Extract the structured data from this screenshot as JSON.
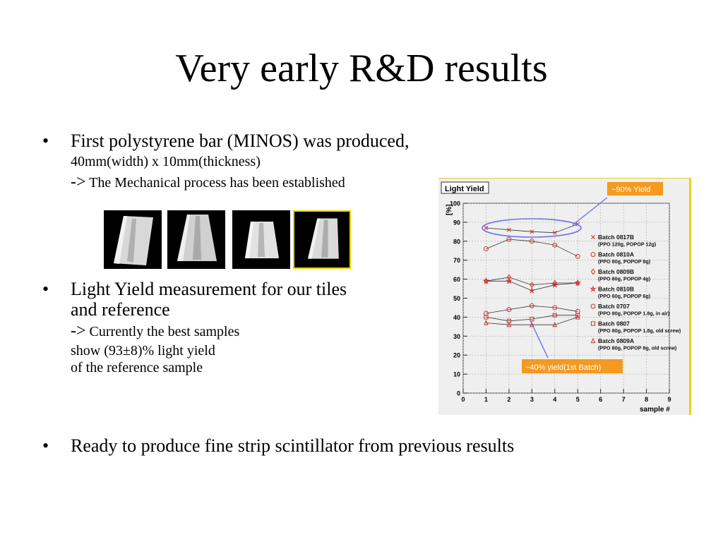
{
  "slide": {
    "title": "Very early R&D results",
    "bullets": [
      {
        "marker": "•",
        "main": "First polystyrene bar (MINOS) was produced,",
        "sub1": "40mm(width) x 10mm(thickness)",
        "arrow": "->",
        "sub2": "The Mechanical process has been established"
      },
      {
        "marker": "•",
        "main1": "Light Yield measurement for our tiles",
        "main2": "and reference",
        "arrow": "->",
        "sub1": "Currently the best samples",
        "sub2": "show (93±8)% light yield",
        "sub3": "of the reference sample"
      },
      {
        "marker": "•",
        "main": "Ready to produce fine strip scintillator from previous results"
      }
    ]
  },
  "chart_data": {
    "type": "scatter",
    "title": "Light Yield",
    "ylabel": "[%]",
    "xlabel": "sample #",
    "xlim": [
      0,
      9
    ],
    "ylim": [
      0,
      100
    ],
    "x_ticks": [
      "0",
      "1",
      "2",
      "3",
      "4",
      "5",
      "6",
      "7",
      "8",
      "9"
    ],
    "y_ticks": [
      "0",
      "10",
      "20",
      "30",
      "40",
      "50",
      "60",
      "70",
      "80",
      "90",
      "100"
    ],
    "marker_color": "#d0302a",
    "line_color": "#333333",
    "annotation_color": "#f39a1f",
    "circle_color": "#7070ee",
    "series": [
      {
        "name": "Batch 0817B",
        "detail": "(PPO 120g, POPOP 12g)",
        "marker": "×",
        "x": [
          1,
          2,
          3,
          4,
          5
        ],
        "y": [
          87,
          86,
          85,
          84.5,
          89
        ]
      },
      {
        "name": "Batch 0810A",
        "detail": "(PPO 80g, POPOP 8g)",
        "marker": "○",
        "x": [
          1,
          2,
          3,
          4,
          5
        ],
        "y": [
          76,
          81,
          80,
          78,
          72
        ]
      },
      {
        "name": "Batch 0809B",
        "detail": "(PPO 80g, POPOP 4g)",
        "marker": "◇",
        "x": [
          1,
          2,
          3,
          4,
          5
        ],
        "y": [
          59,
          61,
          57,
          58,
          58
        ]
      },
      {
        "name": "Batch 0810B",
        "detail": "(PPO 60g, POPOP 6g)",
        "marker": "☆",
        "x": [
          1,
          2,
          3,
          4,
          5
        ],
        "y": [
          59,
          59,
          54,
          57,
          58
        ]
      },
      {
        "name": "Batch 0707",
        "detail": "(PPO 80g, POPOP 1.8g, in air)",
        "marker": "○",
        "x": [
          1,
          2,
          3,
          4,
          5
        ],
        "y": [
          42,
          44,
          46,
          45,
          43
        ]
      },
      {
        "name": "Batch 0807",
        "detail": "(PPO 80g, POPOP 1.8g, old screw)",
        "marker": "□",
        "x": [
          1,
          2,
          3,
          4,
          5
        ],
        "y": [
          40,
          38,
          39,
          41,
          41
        ]
      },
      {
        "name": "Batch 0809A",
        "detail": "(PPO 80g, POPOP 8g, old screw)",
        "marker": "△",
        "x": [
          1,
          2,
          3,
          4,
          5
        ],
        "y": [
          37,
          36,
          36,
          36,
          40
        ]
      }
    ],
    "annotations": [
      "~90% Yield",
      "~40% yield(1st Batch)"
    ]
  }
}
